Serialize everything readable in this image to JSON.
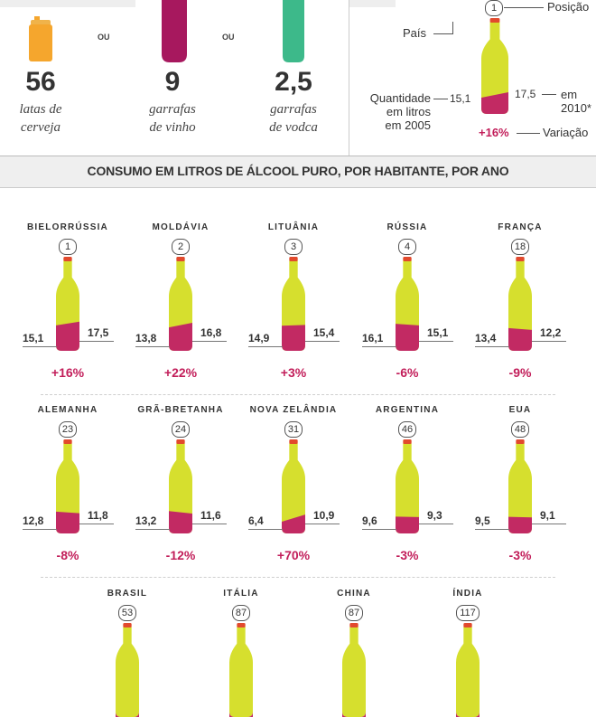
{
  "colors": {
    "bottle_body": "#d6df2e",
    "bottle_fill": "#c22a63",
    "bottle_cap": "#e24a2d",
    "vodka": "#3db98a",
    "wine": "#a7185e",
    "can": "#f5a62d",
    "variation": "#c21e5a"
  },
  "equivalents": {
    "ou": "OU",
    "items": [
      {
        "value": "56",
        "line1": "latas de",
        "line2": "cerveja"
      },
      {
        "value": "9",
        "line1": "garrafas",
        "line2": "de vinho"
      },
      {
        "value": "2,5",
        "line1": "garrafas",
        "line2": "de vodca"
      }
    ]
  },
  "legend": {
    "rank": "1",
    "position": "Posição",
    "country": "País",
    "qty_line1": "Quantidade",
    "qty_line2": "em litros",
    "qty_line3": "em 2005",
    "val_2005": "15,1",
    "val_2010": "17,5",
    "label_2010_a": "em",
    "label_2010_b": "2010*",
    "variation": "+16%",
    "variation_label": "Variação"
  },
  "section_title": "CONSUMO EM LITROS DE ÁLCOOL PURO, POR HABITANTE, POR ANO",
  "countries": [
    {
      "name": "BIELORRÚSSIA",
      "rank": "1",
      "v2005": "15,1",
      "v2010": "17,5",
      "variation": "+16%"
    },
    {
      "name": "MOLDÁVIA",
      "rank": "2",
      "v2005": "13,8",
      "v2010": "16,8",
      "variation": "+22%"
    },
    {
      "name": "LITUÂNIA",
      "rank": "3",
      "v2005": "14,9",
      "v2010": "15,4",
      "variation": "+3%"
    },
    {
      "name": "RÚSSIA",
      "rank": "4",
      "v2005": "16,1",
      "v2010": "15,1",
      "variation": "-6%"
    },
    {
      "name": "FRANÇA",
      "rank": "18",
      "v2005": "13,4",
      "v2010": "12,2",
      "variation": "-9%"
    },
    {
      "name": "ALEMANHA",
      "rank": "23",
      "v2005": "12,8",
      "v2010": "11,8",
      "variation": "-8%"
    },
    {
      "name": "GRÃ-BRETANHA",
      "rank": "24",
      "v2005": "13,2",
      "v2010": "11,6",
      "variation": "-12%"
    },
    {
      "name": "NOVA ZELÂNDIA",
      "rank": "31",
      "v2005": "6,4",
      "v2010": "10,9",
      "variation": "+70%"
    },
    {
      "name": "ARGENTINA",
      "rank": "46",
      "v2005": "9,6",
      "v2010": "9,3",
      "variation": "-3%"
    },
    {
      "name": "EUA",
      "rank": "48",
      "v2005": "9,5",
      "v2010": "9,1",
      "variation": "-3%"
    },
    {
      "name": "BRASIL",
      "rank": "53"
    },
    {
      "name": "ITÁLIA",
      "rank": "87"
    },
    {
      "name": "CHINA",
      "rank": "87"
    },
    {
      "name": "ÍNDIA",
      "rank": "117"
    }
  ]
}
